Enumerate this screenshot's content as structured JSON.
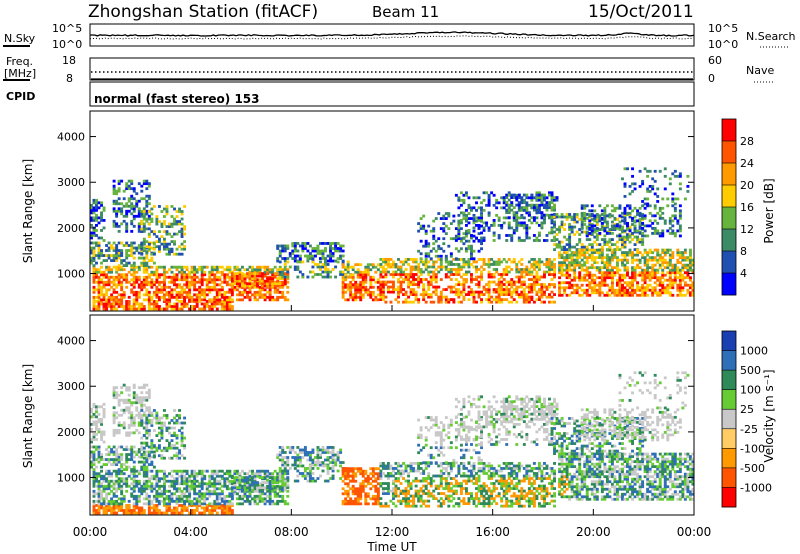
{
  "header": {
    "station": "Zhongshan Station (fitACF)",
    "beam": "Beam 11",
    "date": "15/Oct/2011"
  },
  "noise_panel": {
    "left_label": "N.Sky",
    "right_label": "N.Search",
    "left_ticks": [
      "10^5",
      "10^0"
    ],
    "right_ticks": [
      "10^5",
      "10^0"
    ]
  },
  "freq_panel": {
    "left_label_1": "Freq.",
    "left_label_2": "[MHz]",
    "right_label": "Nave",
    "left_ticks": [
      "18",
      "8"
    ],
    "right_ticks": [
      "60",
      "0"
    ]
  },
  "cpid": {
    "label": "CPID",
    "value": "normal (fast stereo) 153"
  },
  "chart_data": [
    {
      "type": "heatmap",
      "ylabel": "Slant Range [km]",
      "xlabel": "",
      "ylim": [
        180,
        4560
      ],
      "y_ticks": [
        "4000",
        "3000",
        "2000",
        "1000"
      ],
      "colorbar": {
        "label": "Power [dB]",
        "ticks": [
          "28",
          "24",
          "20",
          "16",
          "12",
          "8",
          "4"
        ],
        "colors": [
          "#ff0000",
          "#ff5500",
          "#ff9900",
          "#ffcc00",
          "#66b33d",
          "#3d8a66",
          "#1f4fb0",
          "#0000ff"
        ]
      }
    },
    {
      "type": "heatmap",
      "ylabel": "Slant Range [km]",
      "xlabel": "Time UT",
      "ylim": [
        180,
        4560
      ],
      "y_ticks": [
        "4000",
        "3000",
        "2000",
        "1000"
      ],
      "x_ticks": [
        "00:00",
        "04:00",
        "08:00",
        "12:00",
        "16:00",
        "20:00",
        "00:00"
      ],
      "colorbar": {
        "label": "Velocity [m s⁻¹]",
        "ticks": [
          "1000",
          "500",
          "100",
          "25",
          "-25",
          "-100",
          "-500",
          "-1000"
        ],
        "colors": [
          "#1a3fb0",
          "#2e6fb8",
          "#2f8a5a",
          "#66cc33",
          "#c8c8c8",
          "#ffcc66",
          "#ff9900",
          "#ff5500",
          "#ff0000"
        ]
      }
    }
  ]
}
